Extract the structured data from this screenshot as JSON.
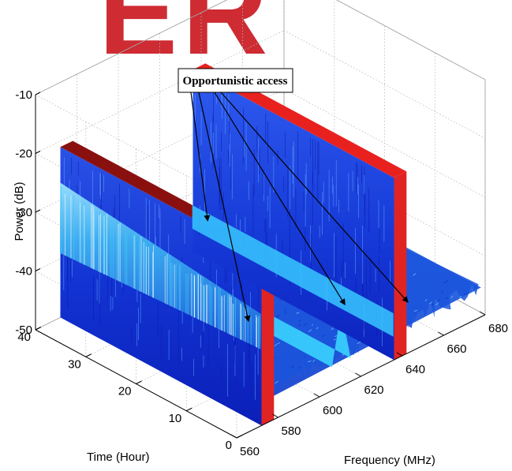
{
  "chart_data": {
    "type": "surface",
    "title": "",
    "xlabel": "Frequency (MHz)",
    "ylabel": "Time (Hour)",
    "zlabel": "Power (dB)",
    "xlim": [
      560,
      680
    ],
    "ylim": [
      0,
      40
    ],
    "zlim": [
      -50,
      -10
    ],
    "x_ticks": [
      "560",
      "580",
      "600",
      "620",
      "640",
      "660",
      "680"
    ],
    "y_ticks": [
      "0",
      "10",
      "20",
      "30",
      "40"
    ],
    "z_ticks": [
      "-50",
      "-40",
      "-30",
      "-20",
      "-10"
    ],
    "grid": true,
    "colormap": "jet",
    "series": [
      {
        "x_start": 572,
        "x_end": 578,
        "level_db": -21
      },
      {
        "x_start": 636,
        "x_end": 642,
        "level_db": -19
      }
    ],
    "annotation": {
      "text": "Opportunistic access",
      "targets_mhz": [
        580,
        590,
        622,
        650
      ]
    },
    "watermark": "ER"
  }
}
